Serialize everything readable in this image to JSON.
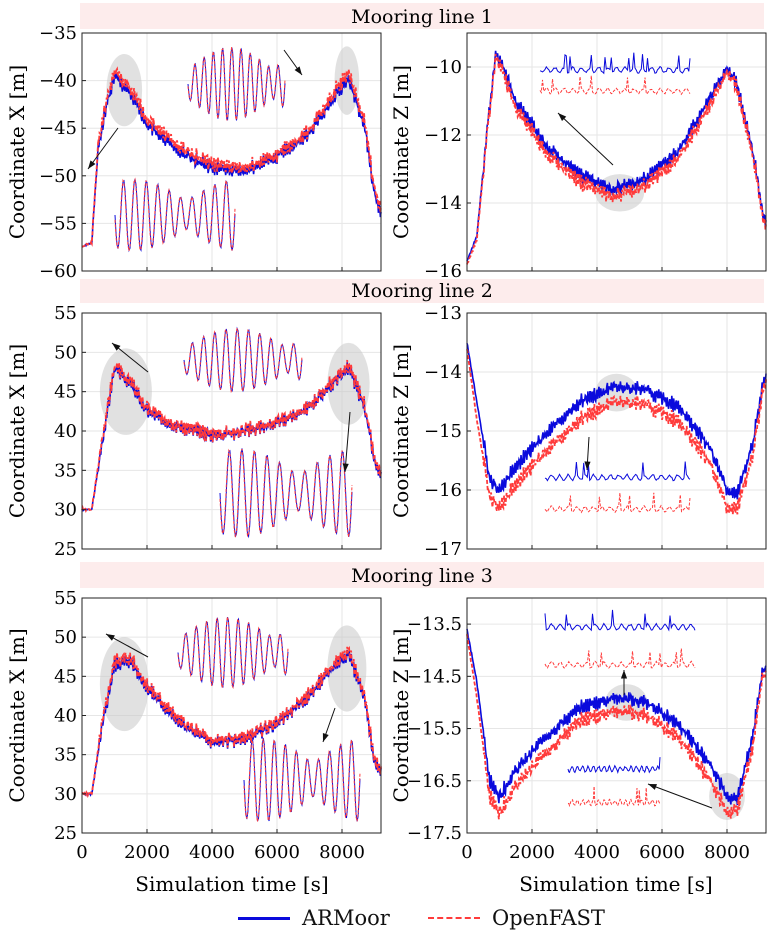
{
  "figure": {
    "legend": [
      {
        "label": "ARMoor",
        "color": "#0a0adc",
        "style": "solid"
      },
      {
        "label": "OpenFAST",
        "color": "#ff3b3b",
        "style": "dashed"
      }
    ],
    "xlabel": "Simulation time [s]",
    "band_color": "#fdecec"
  },
  "chart_data": [
    {
      "type": "line",
      "group": "Mooring line 1",
      "panel": "X",
      "ylabel": "Coordinate X [m]",
      "xlim": [
        0,
        9200
      ],
      "ylim": [
        -60,
        -35
      ],
      "yticks": [
        "−35",
        "−40",
        "−45",
        "−50",
        "−55",
        "−60"
      ],
      "ytick_values": [
        -35,
        -40,
        -45,
        -50,
        -55,
        -60
      ],
      "xticks": [],
      "xtick_values": [
        0,
        2000,
        4000,
        6000,
        8000
      ],
      "x": [
        0,
        300,
        500,
        800,
        1000,
        1500,
        2000,
        3000,
        4000,
        5000,
        6000,
        7000,
        7800,
        8200,
        8700,
        9000,
        9200
      ],
      "series": [
        {
          "name": "ARMoor",
          "values": [
            -57.5,
            -57,
            -47,
            -42,
            -39.5,
            -41.5,
            -44.5,
            -47.5,
            -49.2,
            -49.5,
            -48,
            -45.5,
            -41.5,
            -39.8,
            -45,
            -52,
            -54
          ]
        },
        {
          "name": "OpenFAST",
          "values": [
            -57.5,
            -57,
            -46.5,
            -41.5,
            -39,
            -41,
            -44,
            -47,
            -48.8,
            -49.2,
            -47.8,
            -45.2,
            -41,
            -39.2,
            -44.5,
            -51.5,
            -53.5
          ]
        }
      ],
      "highlights": [
        {
          "cx": 1300,
          "cy": -41,
          "rx": 550,
          "ry": 3.8
        },
        {
          "cx": 8150,
          "cy": -40,
          "rx": 380,
          "ry": 3.6
        }
      ]
    },
    {
      "type": "line",
      "group": "Mooring line 1",
      "panel": "Z",
      "ylabel": "Coordinate Z [m]",
      "xlim": [
        0,
        9200
      ],
      "ylim": [
        -16,
        -9
      ],
      "yticks": [
        "−10",
        "−12",
        "−14",
        "−16"
      ],
      "ytick_values": [
        -10,
        -12,
        -14,
        -16
      ],
      "xticks": [],
      "xtick_values": [
        0,
        2000,
        4000,
        6000,
        8000
      ],
      "x": [
        0,
        300,
        600,
        900,
        1500,
        2500,
        3500,
        4500,
        5500,
        6500,
        7500,
        8000,
        8300,
        8800,
        9100,
        9200
      ],
      "series": [
        {
          "name": "ARMoor",
          "values": [
            -15.7,
            -15,
            -12,
            -9.5,
            -11,
            -12.4,
            -13.2,
            -13.6,
            -13.3,
            -12.5,
            -10.9,
            -10,
            -10.5,
            -12.5,
            -14.3,
            -14.5
          ]
        },
        {
          "name": "OpenFAST",
          "values": [
            -15.8,
            -15.1,
            -12.1,
            -9.6,
            -11.2,
            -12.6,
            -13.4,
            -13.8,
            -13.5,
            -12.7,
            -11.1,
            -10.1,
            -10.6,
            -12.6,
            -14.4,
            -14.6
          ]
        }
      ],
      "highlights": [
        {
          "cx": 4700,
          "cy": -13.7,
          "rx": 750,
          "ry": 0.55
        }
      ]
    },
    {
      "type": "line",
      "group": "Mooring line 2",
      "panel": "X",
      "ylabel": "Coordinate X [m]",
      "xlim": [
        0,
        9200
      ],
      "ylim": [
        25,
        55
      ],
      "yticks": [
        "55",
        "50",
        "45",
        "40",
        "35",
        "30",
        "25"
      ],
      "ytick_values": [
        55,
        50,
        45,
        40,
        35,
        30,
        25
      ],
      "xticks": [],
      "xtick_values": [
        0,
        2000,
        4000,
        6000,
        8000
      ],
      "x": [
        0,
        300,
        600,
        1000,
        1500,
        2000,
        3000,
        4000,
        5000,
        6000,
        7000,
        7800,
        8200,
        8700,
        9000,
        9200
      ],
      "series": [
        {
          "name": "ARMoor",
          "values": [
            30,
            30,
            38,
            48,
            46,
            42.5,
            40.5,
            39.5,
            40,
            41,
            43,
            46.5,
            48,
            43,
            36,
            34
          ]
        },
        {
          "name": "OpenFAST",
          "values": [
            30,
            30,
            38.5,
            48.2,
            46.2,
            42.8,
            40.6,
            39.6,
            40.1,
            41.1,
            43.1,
            46.7,
            48.3,
            43.3,
            36.3,
            34.2
          ]
        }
      ],
      "highlights": [
        {
          "cx": 1350,
          "cy": 45,
          "rx": 800,
          "ry": 5.5
        },
        {
          "cx": 8200,
          "cy": 46,
          "rx": 650,
          "ry": 5.2
        }
      ]
    },
    {
      "type": "line",
      "group": "Mooring line 2",
      "panel": "Z",
      "ylabel": "Coordinate Z [m]",
      "xlim": [
        0,
        9200
      ],
      "ylim": [
        -17,
        -13
      ],
      "yticks": [
        "−13",
        "−14",
        "−15",
        "−16",
        "−17"
      ],
      "ytick_values": [
        -13,
        -14,
        -15,
        -16,
        -17
      ],
      "xticks": [],
      "xtick_values": [
        0,
        2000,
        4000,
        6000,
        8000
      ],
      "x": [
        0,
        300,
        700,
        1000,
        1500,
        2500,
        3500,
        4500,
        5500,
        6500,
        7500,
        8000,
        8300,
        8800,
        9100,
        9200
      ],
      "series": [
        {
          "name": "ARMoor",
          "values": [
            -13.5,
            -14.5,
            -15.8,
            -16,
            -15.6,
            -15,
            -14.5,
            -14.25,
            -14.3,
            -14.6,
            -15.3,
            -16,
            -16.1,
            -15.2,
            -14.2,
            -14.1
          ]
        },
        {
          "name": "OpenFAST",
          "values": [
            -13.6,
            -14.8,
            -16.1,
            -16.3,
            -15.9,
            -15.3,
            -14.8,
            -14.5,
            -14.55,
            -14.85,
            -15.55,
            -16.3,
            -16.35,
            -15.4,
            -14.3,
            -14.2
          ]
        }
      ],
      "highlights": [
        {
          "cx": 4600,
          "cy": -14.35,
          "rx": 650,
          "ry": 0.32
        }
      ]
    },
    {
      "type": "line",
      "group": "Mooring line 3",
      "panel": "X",
      "ylabel": "Coordinate X [m]",
      "xlim": [
        0,
        9200
      ],
      "ylim": [
        25,
        55
      ],
      "yticks": [
        "55",
        "50",
        "45",
        "40",
        "35",
        "30",
        "25"
      ],
      "ytick_values": [
        55,
        50,
        45,
        40,
        35,
        30,
        25
      ],
      "xticks": [
        "0",
        "2000",
        "4000",
        "6000",
        "8000"
      ],
      "xtick_values": [
        0,
        2000,
        4000,
        6000,
        8000
      ],
      "x": [
        0,
        300,
        600,
        1000,
        1500,
        2000,
        3000,
        4000,
        5000,
        6000,
        7000,
        7800,
        8200,
        8700,
        9000,
        9200
      ],
      "series": [
        {
          "name": "ARMoor",
          "values": [
            30,
            30,
            38,
            46.5,
            47,
            43.5,
            39,
            36.5,
            37,
            39,
            42.5,
            46.5,
            48,
            42,
            34,
            33
          ]
        },
        {
          "name": "OpenFAST",
          "values": [
            30,
            30,
            38.5,
            47,
            47.3,
            43.8,
            39.3,
            36.7,
            37.2,
            39.2,
            42.7,
            46.8,
            48.4,
            42.3,
            34.3,
            33.2
          ]
        }
      ],
      "highlights": [
        {
          "cx": 1300,
          "cy": 44,
          "rx": 750,
          "ry": 6
        },
        {
          "cx": 8150,
          "cy": 46,
          "rx": 600,
          "ry": 5.5
        }
      ]
    },
    {
      "type": "line",
      "group": "Mooring line 3",
      "panel": "Z",
      "ylabel": "Coordinate Z [m]",
      "xlim": [
        0,
        9200
      ],
      "ylim": [
        -17.5,
        -13
      ],
      "yticks": [
        "−13.5",
        "−14.5",
        "−15.5",
        "−16.5",
        "−17.5"
      ],
      "ytick_values": [
        -13.5,
        -14.5,
        -15.5,
        -16.5,
        -17.5
      ],
      "xticks": [
        "0",
        "2000",
        "4000",
        "6000",
        "8000"
      ],
      "xtick_values": [
        0,
        2000,
        4000,
        6000,
        8000
      ],
      "x": [
        0,
        300,
        700,
        1000,
        1500,
        2500,
        3500,
        4500,
        5500,
        6500,
        7500,
        8000,
        8300,
        8800,
        9100,
        9200
      ],
      "series": [
        {
          "name": "ARMoor",
          "values": [
            -13.6,
            -14.6,
            -16.5,
            -16.8,
            -16.3,
            -15.6,
            -15.1,
            -14.9,
            -15,
            -15.4,
            -16.2,
            -16.8,
            -16.9,
            -15.6,
            -14.4,
            -14.3
          ]
        },
        {
          "name": "OpenFAST",
          "values": [
            -13.7,
            -14.9,
            -16.8,
            -17.1,
            -16.6,
            -15.9,
            -15.35,
            -15.15,
            -15.25,
            -15.65,
            -16.5,
            -17.1,
            -17.1,
            -15.8,
            -14.5,
            -14.4
          ]
        }
      ],
      "highlights": [
        {
          "cx": 4900,
          "cy": -15,
          "rx": 650,
          "ry": 0.35
        },
        {
          "cx": 8000,
          "cy": -16.8,
          "rx": 550,
          "ry": 0.45
        }
      ]
    }
  ],
  "group_titles": [
    "Mooring line 1",
    "Mooring line 2",
    "Mooring line 3"
  ]
}
